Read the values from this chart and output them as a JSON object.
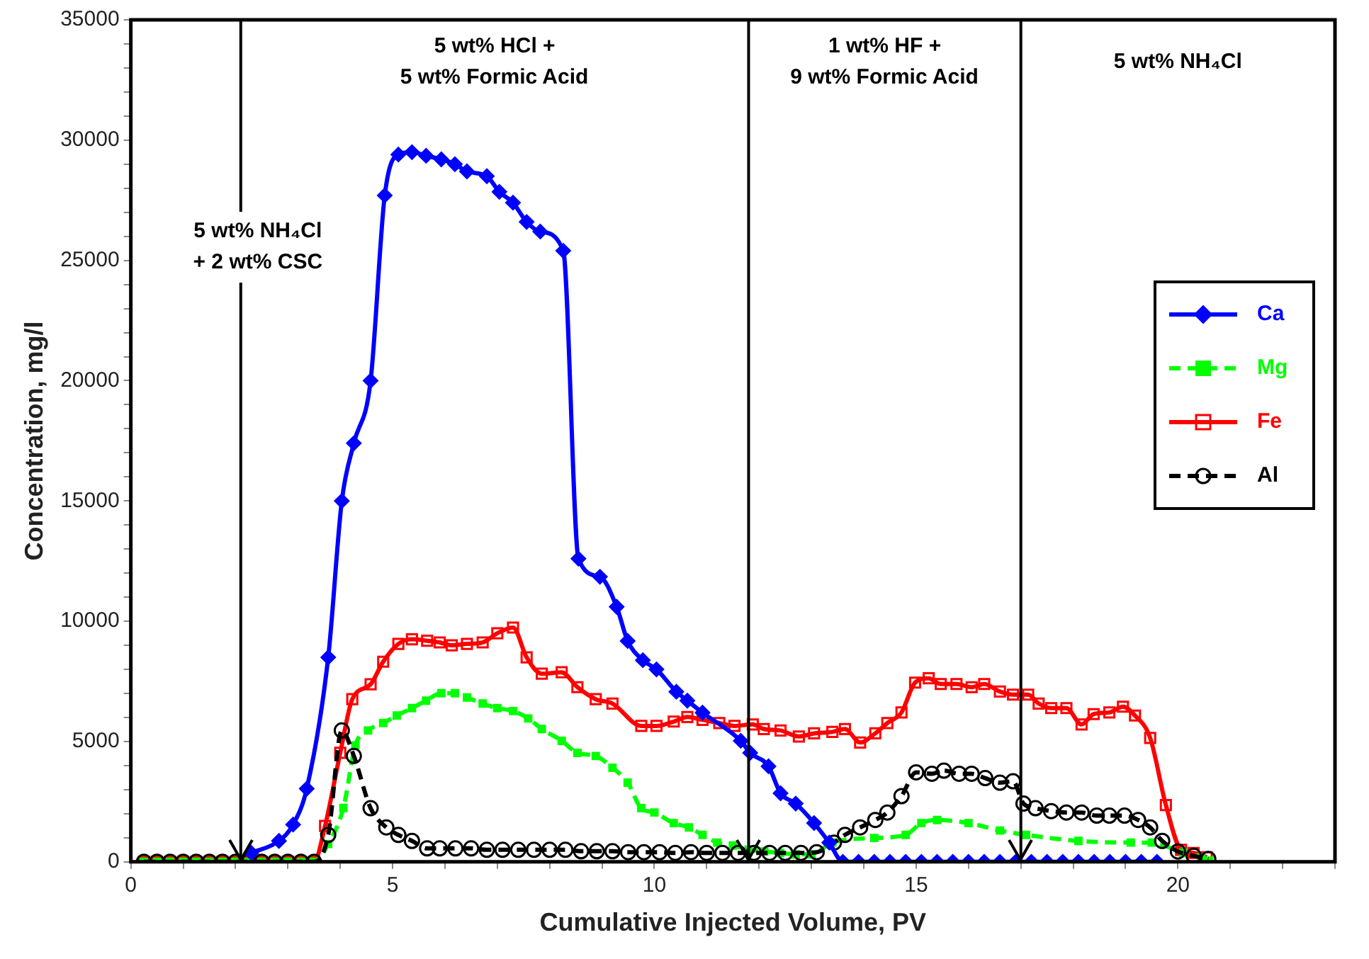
{
  "chart_data": {
    "type": "line",
    "xlabel": "Cumulative Injected Volume, PV",
    "ylabel": "Concentration, mg/l",
    "xlim": [
      0,
      23
    ],
    "xticks": [
      0,
      {
        "value": 1,
        "label": null
      },
      {
        "value": 2,
        "label": null
      },
      {
        "value": 3,
        "label": null
      },
      {
        "value": 4,
        "label": null
      },
      5,
      {
        "value": 6,
        "label": null
      },
      {
        "value": 7,
        "label": null
      },
      {
        "value": 8,
        "label": null
      },
      {
        "value": 9,
        "label": null
      },
      10,
      {
        "value": 11,
        "label": null
      },
      {
        "value": 12,
        "label": null
      },
      {
        "value": 13,
        "label": null
      },
      {
        "value": 14,
        "label": null
      },
      15,
      {
        "value": 16,
        "label": null
      },
      {
        "value": 17,
        "label": null
      },
      {
        "value": 18,
        "label": null
      },
      {
        "value": 19,
        "label": null
      },
      20,
      {
        "value": 21,
        "label": null
      },
      {
        "value": 22,
        "label": null
      },
      {
        "value": 23,
        "label": null
      }
    ],
    "ylim": [
      0,
      35000
    ],
    "yticks": [
      0,
      {
        "value": 1000,
        "label": null
      },
      {
        "value": 2000,
        "label": null
      },
      {
        "value": 3000,
        "label": null
      },
      {
        "value": 4000,
        "label": null
      },
      5000,
      {
        "value": 6000,
        "label": null
      },
      {
        "value": 7000,
        "label": null
      },
      {
        "value": 8000,
        "label": null
      },
      {
        "value": 9000,
        "label": null
      },
      10000,
      {
        "value": 11000,
        "label": null
      },
      {
        "value": 12000,
        "label": null
      },
      {
        "value": 13000,
        "label": null
      },
      {
        "value": 14000,
        "label": null
      },
      15000,
      {
        "value": 16000,
        "label": null
      },
      {
        "value": 17000,
        "label": null
      },
      {
        "value": 18000,
        "label": null
      },
      {
        "value": 19000,
        "label": null
      },
      20000,
      {
        "value": 21000,
        "label": null
      },
      {
        "value": 22000,
        "label": null
      },
      {
        "value": 23000,
        "label": null
      },
      {
        "value": 24000,
        "label": null
      },
      25000,
      {
        "value": 26000,
        "label": null
      },
      {
        "value": 27000,
        "label": null
      },
      {
        "value": 28000,
        "label": null
      },
      {
        "value": 29000,
        "label": null
      },
      30000,
      {
        "value": 31000,
        "label": null
      },
      {
        "value": 32000,
        "label": null
      },
      {
        "value": 33000,
        "label": null
      },
      {
        "value": 34000,
        "label": null
      },
      35000
    ],
    "grid": false,
    "legend": "right",
    "ref_lines": [
      {
        "axis": "x",
        "value": 2.1,
        "color": "#000000"
      },
      {
        "axis": "x",
        "value": 11.8,
        "color": "#000000"
      },
      {
        "axis": "x",
        "value": 17,
        "color": "#000000"
      }
    ],
    "annotations": [
      "5 wt% NH₄Cl\n+ 2 wt% CSC",
      "5 wt% HCl +\n5 wt% Formic Acid",
      "1 wt% HF +\n9 wt% Formic Acid",
      "5 wt% NH₄Cl"
    ],
    "series": [
      {
        "name": "Ca",
        "color": "#0000ff",
        "marker": "diamond",
        "line_style": "solid",
        "x": [
          2.3,
          2.83,
          3.1,
          3.36,
          3.77,
          4.03,
          4.26,
          4.58,
          4.85,
          5.11,
          5.37,
          5.64,
          5.93,
          6.19,
          6.42,
          6.8,
          7.04,
          7.3,
          7.56,
          7.82,
          8.26,
          8.55,
          8.96,
          9.28,
          9.49,
          9.78,
          10.04,
          10.42,
          10.63,
          10.92,
          11.65,
          11.83,
          12.18,
          12.41,
          12.7,
          13.05,
          13.34,
          13.6,
          13.9,
          14.2,
          14.5,
          14.8,
          15.1,
          15.4,
          15.7,
          16,
          16.3,
          16.6,
          16.9,
          17.2,
          17.5,
          17.8,
          18.1,
          18.4,
          18.7,
          19,
          19.3,
          19.6
        ],
        "values": [
          370,
          870,
          1550,
          3040,
          8500,
          15000,
          17400,
          20000,
          27700,
          29400,
          29500,
          29350,
          29200,
          29000,
          28700,
          28500,
          27850,
          27400,
          26600,
          26200,
          25400,
          12600,
          11850,
          10600,
          9180,
          8380,
          8000,
          7070,
          6700,
          6200,
          5030,
          4530,
          3970,
          2850,
          2420,
          1610,
          800,
          0,
          0,
          0,
          0,
          0,
          0,
          0,
          0,
          0,
          0,
          0,
          0,
          0,
          0,
          0,
          0,
          0,
          0,
          0,
          0,
          0
        ]
      },
      {
        "name": "Mg",
        "color": "#00ff00",
        "marker": "square",
        "line_style": "dashed",
        "x": [
          0.25,
          0.5,
          0.75,
          1,
          1.25,
          1.5,
          1.75,
          2,
          2.25,
          2.5,
          2.75,
          3,
          3.25,
          3.5,
          3.77,
          4.06,
          4.29,
          4.53,
          4.82,
          5.08,
          5.37,
          5.64,
          5.93,
          6.19,
          6.42,
          6.72,
          7,
          7.3,
          7.59,
          7.85,
          8.23,
          8.53,
          8.88,
          9.2,
          9.49,
          9.75,
          10,
          10.37,
          10.66,
          10.92,
          11.2,
          11.5,
          11.8,
          12.1,
          12.4,
          12.7,
          13,
          13.4,
          14.2,
          14.8,
          15.1,
          15.4,
          16,
          16.6,
          17.1,
          18.1,
          19.1,
          19.5,
          20.1,
          20.45,
          20.6
        ],
        "values": [
          0,
          0,
          0,
          0,
          0,
          0,
          0,
          0,
          0,
          0,
          0,
          0,
          0,
          0,
          740,
          2240,
          4840,
          5460,
          5770,
          6080,
          6390,
          6700,
          7010,
          7010,
          6830,
          6580,
          6390,
          6270,
          5960,
          5520,
          5030,
          4530,
          4400,
          3910,
          3290,
          2230,
          2050,
          1610,
          1430,
          1120,
          800,
          680,
          500,
          430,
          370,
          310,
          310,
          800,
          990,
          1120,
          1610,
          1740,
          1610,
          1300,
          1120,
          870,
          800,
          800,
          370,
          190,
          50
        ]
      },
      {
        "name": "Fe",
        "color": "#ff0000",
        "marker": "square",
        "line_style": "solid",
        "x": [
          0.25,
          0.5,
          0.75,
          1,
          1.25,
          1.5,
          1.75,
          2,
          2.25,
          2.5,
          2.75,
          3,
          3.25,
          3.5,
          3.71,
          4,
          4.23,
          4.58,
          4.82,
          5.11,
          5.37,
          5.66,
          5.9,
          6.13,
          6.42,
          6.72,
          7,
          7.3,
          7.56,
          7.85,
          8.23,
          8.53,
          8.88,
          9.2,
          9.75,
          10.04,
          10.37,
          10.63,
          10.92,
          11.24,
          11.53,
          11.88,
          12.09,
          12.41,
          12.76,
          13.05,
          13.4,
          13.64,
          13.93,
          14.22,
          14.45,
          14.72,
          14.98,
          15.24,
          15.47,
          15.77,
          16.06,
          16.3,
          16.6,
          16.85,
          17.14,
          17.34,
          17.58,
          17.87,
          18.16,
          18.39,
          18.69,
          18.95,
          19.18,
          19.47,
          19.77,
          20.06,
          20.3,
          20.55
        ],
        "values": [
          0,
          0,
          0,
          0,
          0,
          0,
          0,
          0,
          0,
          0,
          0,
          0,
          0,
          0,
          1490,
          4530,
          6760,
          7380,
          8320,
          9060,
          9250,
          9190,
          9120,
          9000,
          9060,
          9120,
          9500,
          9740,
          8500,
          7820,
          7880,
          7260,
          6760,
          6580,
          5650,
          5650,
          5830,
          6020,
          5900,
          5770,
          5650,
          5710,
          5520,
          5460,
          5210,
          5340,
          5400,
          5520,
          4960,
          5340,
          5770,
          6210,
          7450,
          7630,
          7390,
          7390,
          7260,
          7390,
          7080,
          6950,
          6950,
          6580,
          6390,
          6390,
          5710,
          6140,
          6210,
          6450,
          6080,
          5150,
          2360,
          500,
          370,
          190
        ]
      },
      {
        "name": "Al",
        "color": "#000000",
        "marker": "circle",
        "line_style": "dashed",
        "x": [
          0.25,
          0.5,
          0.75,
          1,
          1.25,
          1.5,
          1.75,
          2,
          2.25,
          2.5,
          2.75,
          3,
          3.25,
          3.5,
          3.77,
          4.03,
          4.26,
          4.58,
          4.88,
          5.11,
          5.37,
          5.66,
          5.9,
          6.2,
          6.5,
          6.8,
          7.1,
          7.4,
          7.7,
          8,
          8.3,
          8.6,
          8.9,
          9.2,
          9.5,
          9.8,
          10.1,
          10.4,
          10.7,
          11,
          11.3,
          11.6,
          11.9,
          12.2,
          12.5,
          12.8,
          13.1,
          13.43,
          13.64,
          13.93,
          14.22,
          14.45,
          14.72,
          15,
          15.3,
          15.53,
          15.82,
          16.06,
          16.32,
          16.6,
          16.85,
          17.05,
          17.28,
          17.58,
          17.87,
          18.16,
          18.45,
          18.69,
          18.98,
          19.24,
          19.47,
          19.7,
          20,
          20.3,
          20.58
        ],
        "values": [
          0,
          0,
          0,
          0,
          0,
          0,
          0,
          0,
          0,
          0,
          0,
          0,
          0,
          0,
          1120,
          5460,
          4400,
          2230,
          1430,
          1120,
          870,
          560,
          560,
          560,
          560,
          500,
          500,
          500,
          500,
          500,
          500,
          440,
          440,
          440,
          400,
          400,
          400,
          370,
          400,
          370,
          370,
          370,
          370,
          370,
          370,
          370,
          400,
          800,
          1120,
          1430,
          1740,
          2050,
          2730,
          3720,
          3660,
          3790,
          3660,
          3660,
          3480,
          3290,
          3350,
          2420,
          2230,
          2110,
          2050,
          2050,
          1920,
          1920,
          1920,
          1740,
          1430,
          870,
          430,
          250,
          120
        ]
      }
    ]
  }
}
